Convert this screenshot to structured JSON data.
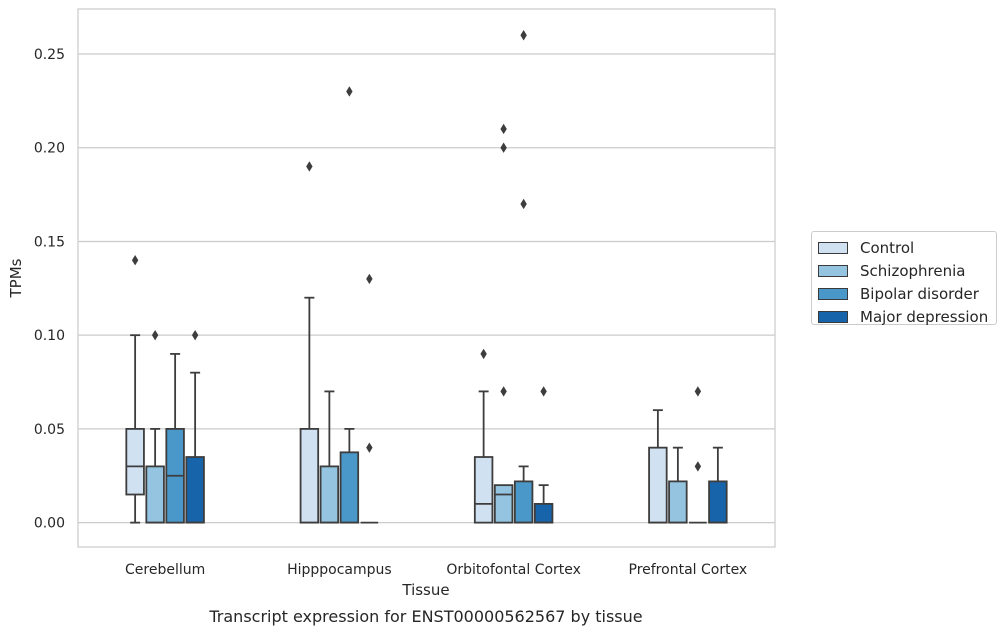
{
  "chart_data": {
    "type": "boxplot",
    "title": "Transcript expression for ENST00000562567 by tissue",
    "xlabel": "Tissue",
    "ylabel": "TPMs",
    "ylim": [
      -0.013,
      0.274
    ],
    "yticks": [
      "0.00",
      "0.05",
      "0.10",
      "0.15",
      "0.20",
      "0.25"
    ],
    "ytick_values": [
      0,
      0.05,
      0.1,
      0.15,
      0.2,
      0.25
    ],
    "grid": true,
    "legend_position": "right",
    "categories": [
      "Cerebellum",
      "Hipppocampus",
      "Orbitofontal Cortex",
      "Prefrontal Cortex"
    ],
    "series": [
      {
        "name": "Control",
        "color": "#d0e1f2",
        "boxes": [
          {
            "q1": 0.015,
            "median": 0.03,
            "q3": 0.05,
            "whislo": 0,
            "whishi": 0.1,
            "fliers": [
              0.14
            ]
          },
          {
            "q1": 0,
            "median": 0,
            "q3": 0.05,
            "whislo": 0,
            "whishi": 0.12,
            "fliers": [
              0.19
            ]
          },
          {
            "q1": 0,
            "median": 0.01,
            "q3": 0.035,
            "whislo": 0,
            "whishi": 0.07,
            "fliers": [
              0.09
            ]
          },
          {
            "q1": 0,
            "median": 0,
            "q3": 0.04,
            "whislo": 0,
            "whishi": 0.06,
            "fliers": []
          }
        ]
      },
      {
        "name": "Schizophrenia",
        "color": "#94c4df",
        "boxes": [
          {
            "q1": 0,
            "median": 0,
            "q3": 0.03,
            "whislo": 0,
            "whishi": 0.05,
            "fliers": [
              0.1
            ]
          },
          {
            "q1": 0,
            "median": 0,
            "q3": 0.03,
            "whislo": 0,
            "whishi": 0.07,
            "fliers": []
          },
          {
            "q1": 0,
            "median": 0.015,
            "q3": 0.02,
            "whislo": 0,
            "whishi": 0.02,
            "fliers": [
              0.07,
              0.2,
              0.21
            ]
          },
          {
            "q1": 0,
            "median": 0,
            "q3": 0.022,
            "whislo": 0,
            "whishi": 0.04,
            "fliers": []
          }
        ]
      },
      {
        "name": "Bipolar disorder",
        "color": "#4a98c9",
        "boxes": [
          {
            "q1": 0,
            "median": 0.025,
            "q3": 0.05,
            "whislo": 0,
            "whishi": 0.09,
            "fliers": []
          },
          {
            "q1": 0,
            "median": 0,
            "q3": 0.0375,
            "whislo": 0,
            "whishi": 0.05,
            "fliers": [
              0.23
            ]
          },
          {
            "q1": 0,
            "median": 0,
            "q3": 0.022,
            "whislo": 0,
            "whishi": 0.03,
            "fliers": [
              0.17,
              0.26
            ]
          },
          {
            "q1": 0,
            "median": 0,
            "q3": 0,
            "whislo": 0,
            "whishi": 0,
            "fliers": [
              0.03,
              0.07
            ]
          }
        ]
      },
      {
        "name": "Major depression",
        "color": "#1764ab",
        "boxes": [
          {
            "q1": 0,
            "median": 0,
            "q3": 0.035,
            "whislo": 0,
            "whishi": 0.08,
            "fliers": [
              0.1
            ]
          },
          {
            "q1": 0,
            "median": 0,
            "q3": 0,
            "whislo": 0,
            "whishi": 0,
            "fliers": [
              0.04,
              0.13
            ]
          },
          {
            "q1": 0,
            "median": 0,
            "q3": 0.01,
            "whislo": 0,
            "whishi": 0.02,
            "fliers": [
              0.07
            ]
          },
          {
            "q1": 0,
            "median": 0,
            "q3": 0.022,
            "whislo": 0,
            "whishi": 0.04,
            "fliers": []
          }
        ]
      }
    ]
  }
}
